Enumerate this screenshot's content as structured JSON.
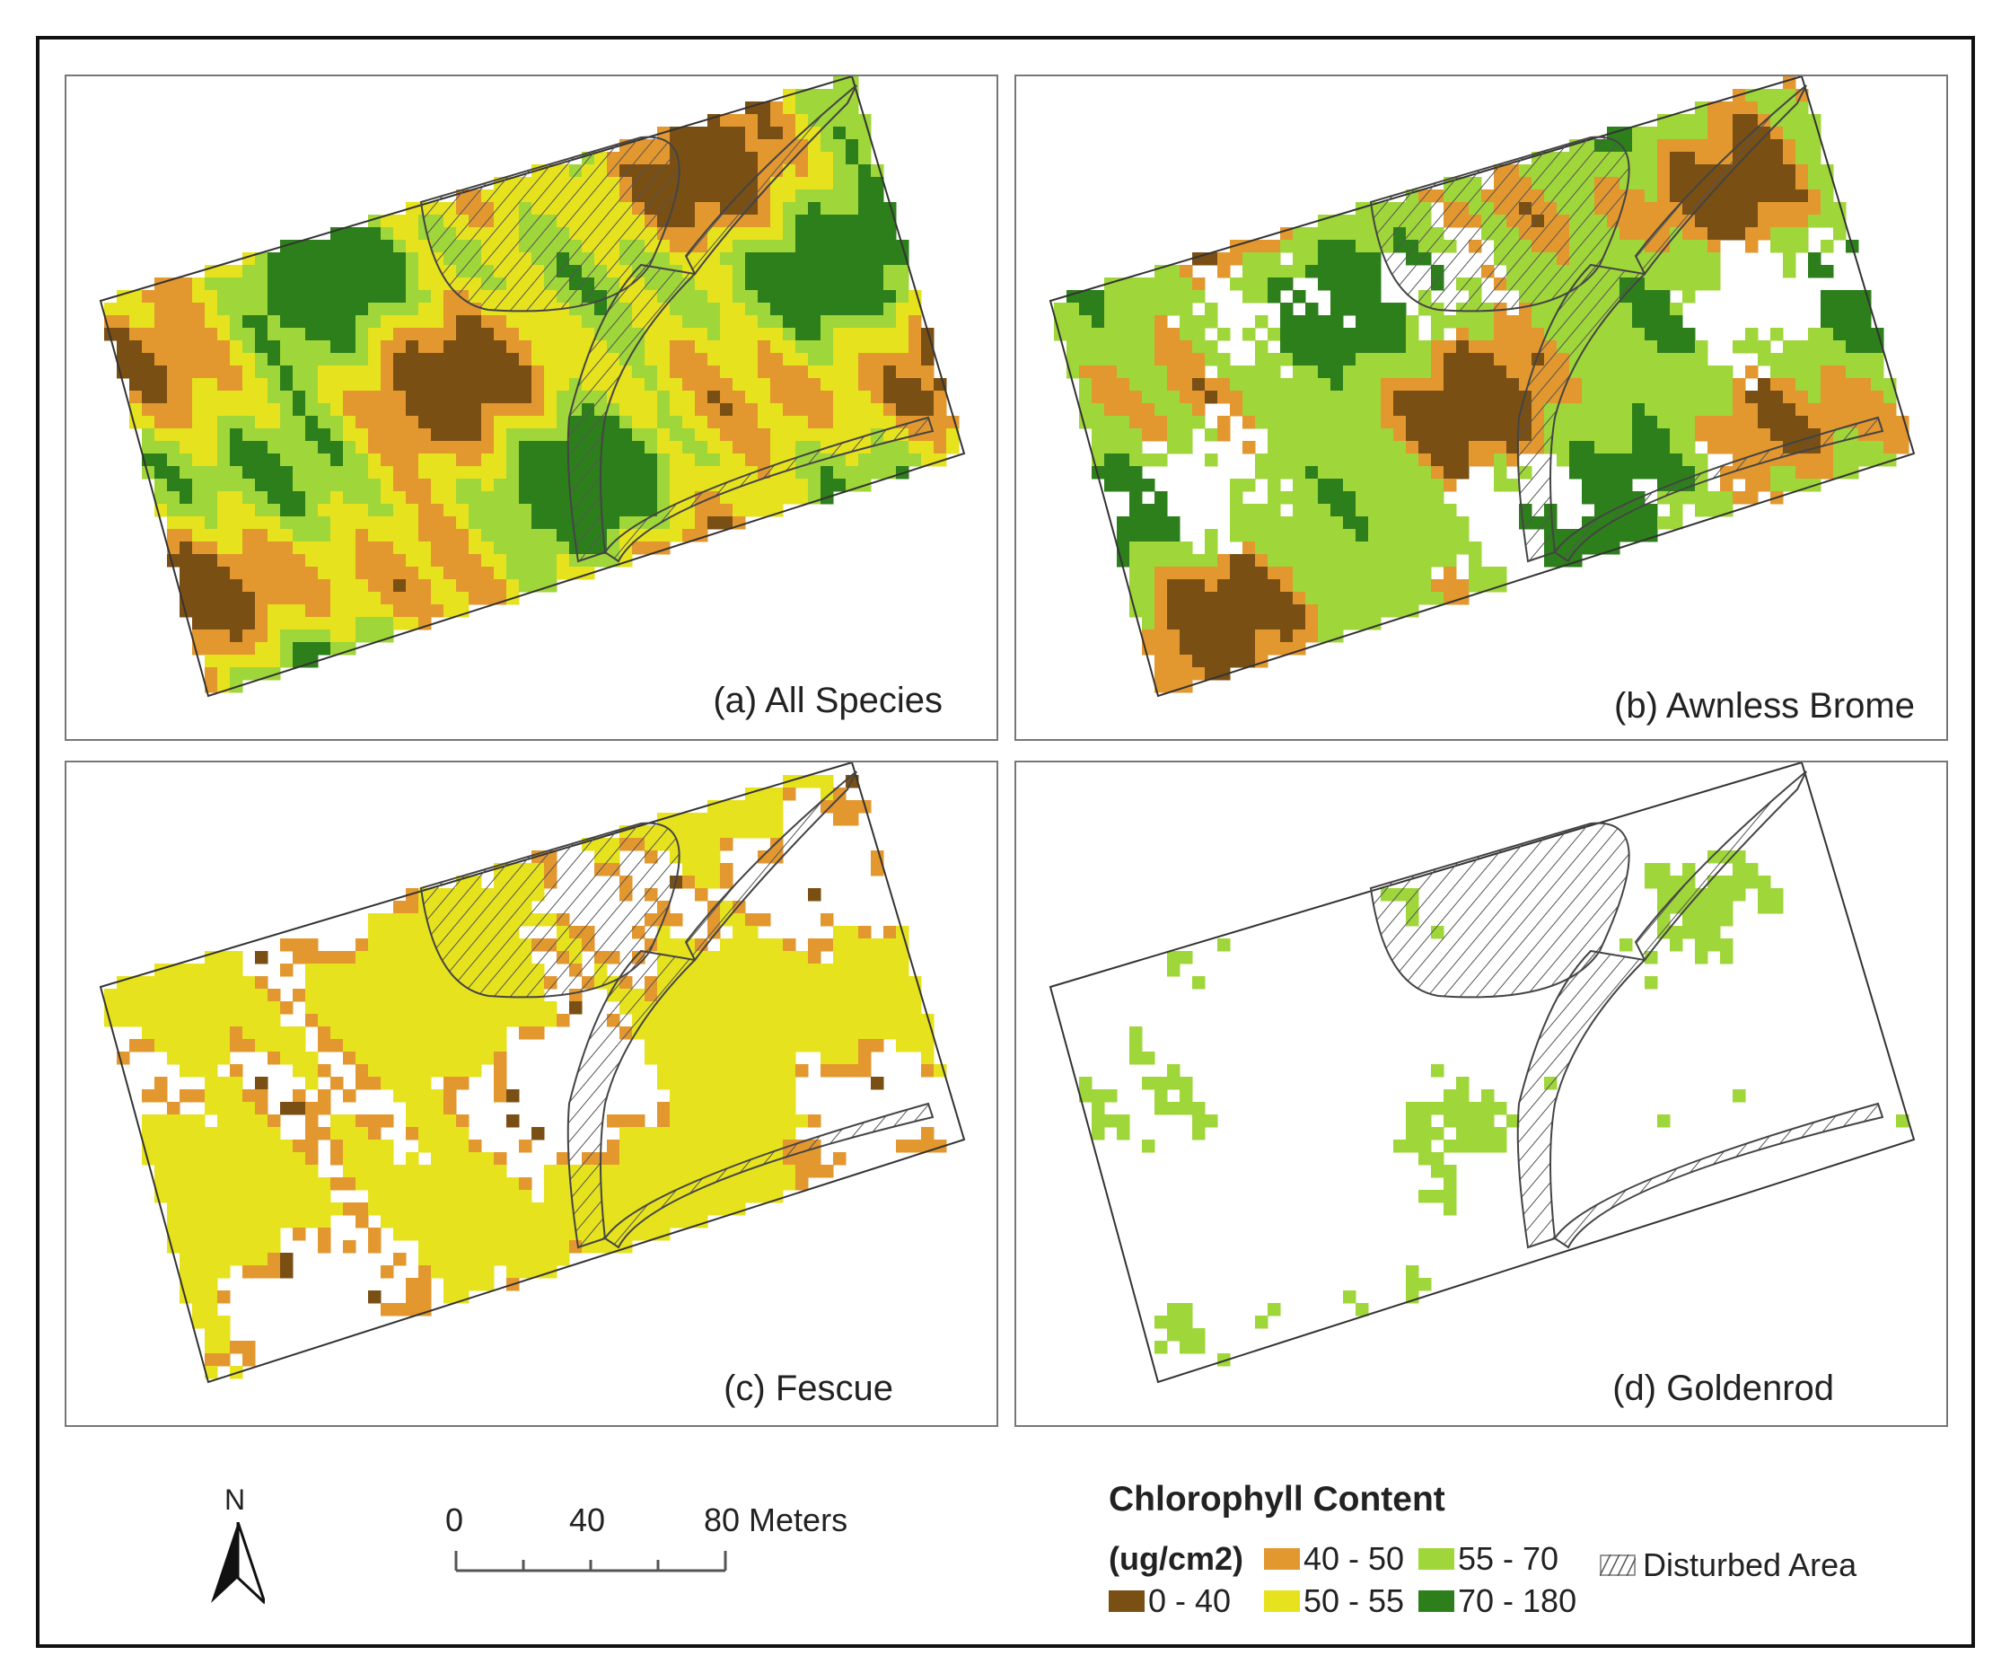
{
  "panels": [
    {
      "label": "(a) All Species",
      "coverage": "full"
    },
    {
      "label": "(b) Awnless Brome",
      "coverage": "high"
    },
    {
      "label": "(c) Fescue",
      "coverage": "medium"
    },
    {
      "label": "(d) Goldenrod",
      "coverage": "sparse"
    }
  ],
  "legend": {
    "title": "Chlorophyll Content",
    "unit": "(ug/cm2)",
    "classes": [
      {
        "label": "0 - 40",
        "color": "#7a4f14"
      },
      {
        "label": "40 - 50",
        "color": "#e3972f"
      },
      {
        "label": "50 - 55",
        "color": "#e6e21e"
      },
      {
        "label": "55 - 70",
        "color": "#9fd63a"
      },
      {
        "label": "70 - 180",
        "color": "#2d7f1b"
      }
    ],
    "disturbed_label": "Disturbed Area"
  },
  "north_arrow": {
    "label": "N",
    "icon": "north-arrow-icon"
  },
  "scale_bar": {
    "labels": [
      "0",
      "40",
      "80 Meters"
    ]
  }
}
